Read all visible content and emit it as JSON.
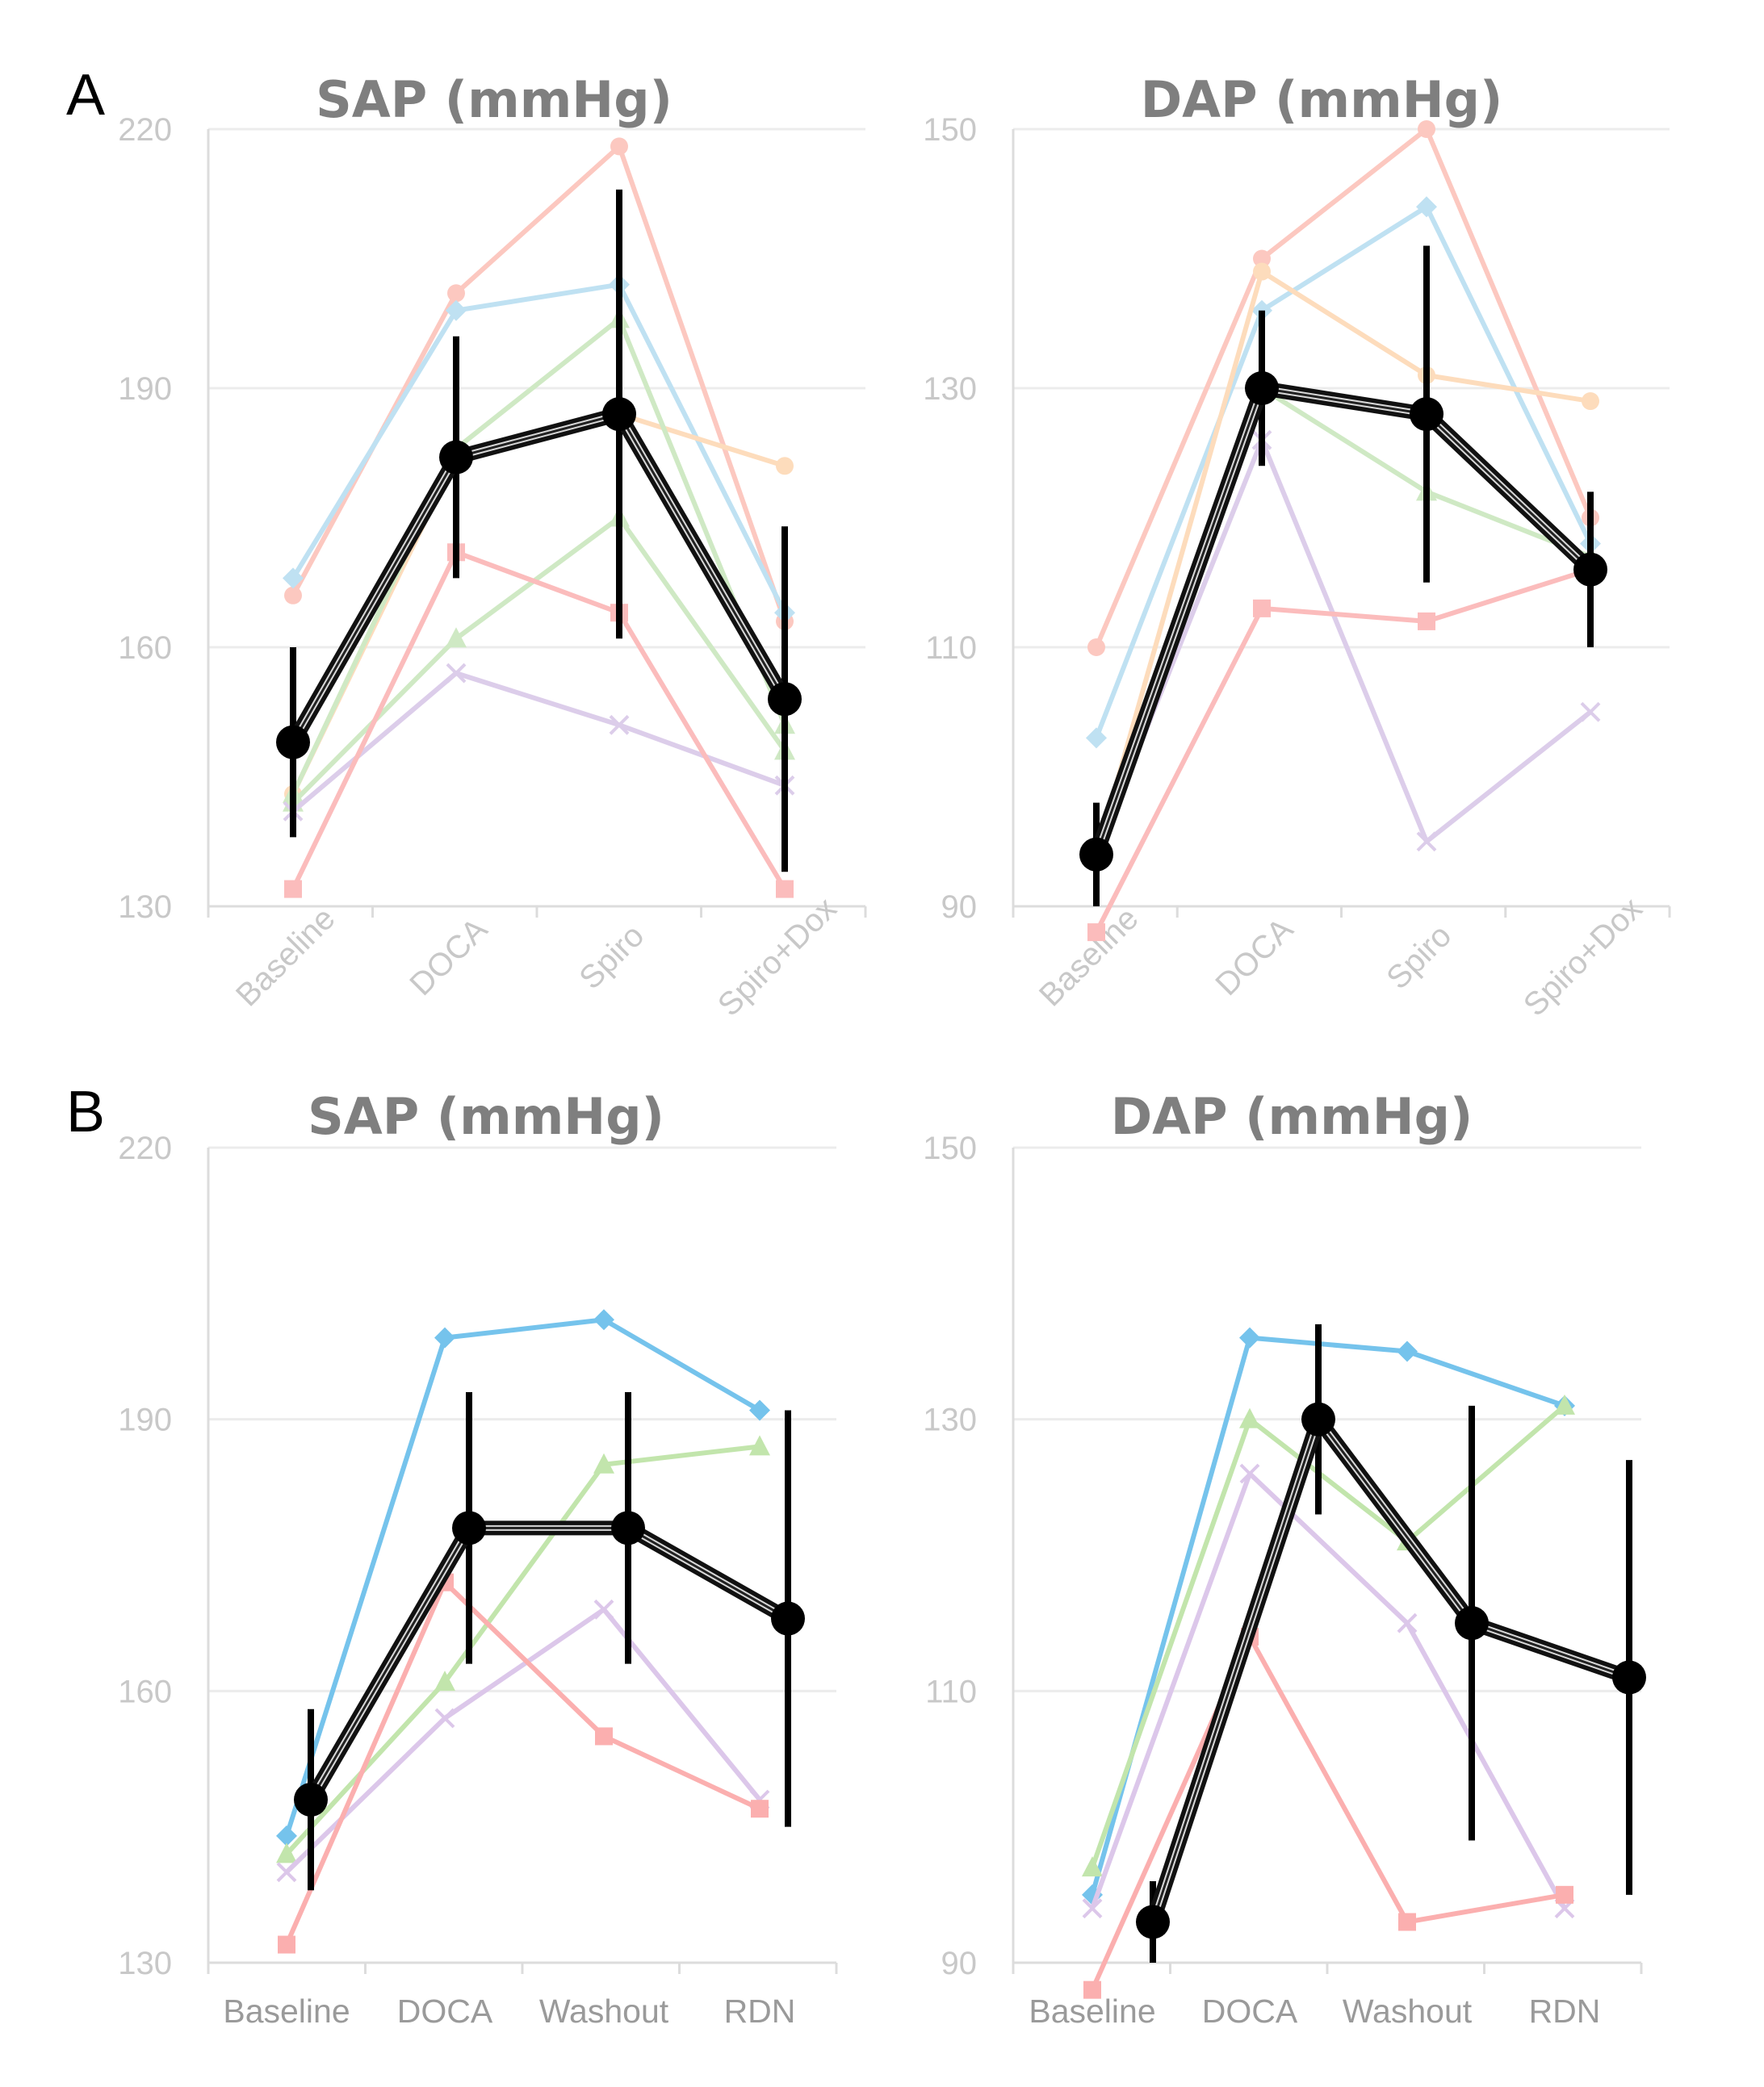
{
  "panels": [
    {
      "letter": "A"
    },
    {
      "letter": "B"
    }
  ],
  "chart_data": [
    {
      "type": "line",
      "panel": "A",
      "title": "SAP (mmHg)",
      "categories": [
        "Baseline",
        "DOCA",
        "Spiro",
        "Spiro+Dox"
      ],
      "ylim": [
        130,
        220
      ],
      "yticks": [
        130,
        160,
        190,
        220
      ],
      "x_labels_rotated": true,
      "grid": true,
      "series": [
        {
          "color": "#fcc8c0",
          "marker": "circle",
          "values": [
            166,
            201,
            218,
            163
          ]
        },
        {
          "color": "#bfe1f2",
          "marker": "diamond",
          "values": [
            168,
            199,
            202,
            164
          ]
        },
        {
          "color": "#fddcbc",
          "marker": "circle",
          "values": [
            143,
            182,
            187,
            181
          ]
        },
        {
          "color": "#cfe9c4",
          "marker": "triangle",
          "values": [
            143,
            183,
            198,
            151
          ]
        },
        {
          "color": "#cfe9c4",
          "marker": "triangle",
          "values": [
            142,
            161,
            175,
            148
          ]
        },
        {
          "color": "#dccdea",
          "marker": "x",
          "values": [
            141,
            157,
            151,
            144
          ]
        },
        {
          "color": "#fbbcbc",
          "marker": "square",
          "values": [
            132,
            171,
            164,
            132
          ]
        },
        {
          "color": "#000000",
          "marker": "circle",
          "mean": true,
          "values": [
            149,
            182,
            187,
            154
          ],
          "err": [
            11,
            14,
            26,
            20
          ]
        }
      ]
    },
    {
      "type": "line",
      "panel": "A",
      "title": "DAP (mmHg)",
      "categories": [
        "Baseline",
        "DOCA",
        "Spiro",
        "Spiro+Dox"
      ],
      "ylim": [
        90,
        150
      ],
      "yticks": [
        90,
        110,
        130,
        150
      ],
      "x_labels_rotated": true,
      "grid": true,
      "series": [
        {
          "color": "#fcc8c0",
          "marker": "circle",
          "values": [
            110,
            140,
            150,
            120
          ]
        },
        {
          "color": "#bfe1f2",
          "marker": "diamond",
          "values": [
            103,
            136,
            144,
            118
          ]
        },
        {
          "color": "#fddcbc",
          "marker": "circle",
          "values": [
            94,
            139,
            131,
            129
          ]
        },
        {
          "color": "#cfe9c4",
          "marker": "triangle",
          "values": [
            94,
            130,
            122,
            117
          ]
        },
        {
          "color": "#dccdea",
          "marker": "x",
          "values": [
            94,
            126,
            95,
            105
          ]
        },
        {
          "color": "#fbbcbc",
          "marker": "square",
          "values": [
            88,
            113,
            112,
            116
          ]
        },
        {
          "color": "#000000",
          "marker": "circle",
          "mean": true,
          "values": [
            94,
            130,
            128,
            116
          ],
          "err": [
            4,
            6,
            13,
            6
          ]
        }
      ]
    },
    {
      "type": "line",
      "panel": "B",
      "title": "SAP (mmHg)",
      "categories": [
        "Baseline",
        "DOCA",
        "Washout",
        "RDN"
      ],
      "ylim": [
        130,
        220
      ],
      "yticks": [
        130,
        160,
        190,
        220
      ],
      "x_labels_rotated": false,
      "grid": true,
      "series": [
        {
          "color": "#75c3ec",
          "marker": "diamond",
          "values": [
            144,
            199,
            201,
            191
          ]
        },
        {
          "color": "#c2e5ac",
          "marker": "triangle",
          "values": [
            142,
            161,
            185,
            187
          ]
        },
        {
          "color": "#dcc7ea",
          "marker": "x",
          "values": [
            140,
            157,
            169,
            148
          ]
        },
        {
          "color": "#fbafaf",
          "marker": "square",
          "values": [
            132,
            172,
            155,
            147
          ]
        },
        {
          "color": "#000000",
          "marker": "circle",
          "mean": true,
          "values": [
            148,
            178,
            178,
            168
          ],
          "err": [
            10,
            15,
            15,
            23
          ]
        }
      ]
    },
    {
      "type": "line",
      "panel": "B",
      "title": "DAP (mmHg)",
      "categories": [
        "Baseline",
        "DOCA",
        "Washout",
        "RDN"
      ],
      "ylim": [
        90,
        150
      ],
      "yticks": [
        90,
        110,
        130,
        150
      ],
      "x_labels_rotated": false,
      "grid": true,
      "series": [
        {
          "color": "#75c3ec",
          "marker": "diamond",
          "values": [
            95,
            136,
            135,
            131
          ]
        },
        {
          "color": "#c2e5ac",
          "marker": "triangle",
          "values": [
            97,
            130,
            121,
            131
          ]
        },
        {
          "color": "#dcc7ea",
          "marker": "x",
          "values": [
            94,
            126,
            115,
            94
          ]
        },
        {
          "color": "#fbafaf",
          "marker": "square",
          "values": [
            88,
            114,
            93,
            95
          ]
        },
        {
          "color": "#000000",
          "marker": "circle",
          "mean": true,
          "values": [
            93,
            130,
            115,
            111
          ],
          "err": [
            3,
            7,
            16,
            16
          ]
        }
      ]
    }
  ]
}
